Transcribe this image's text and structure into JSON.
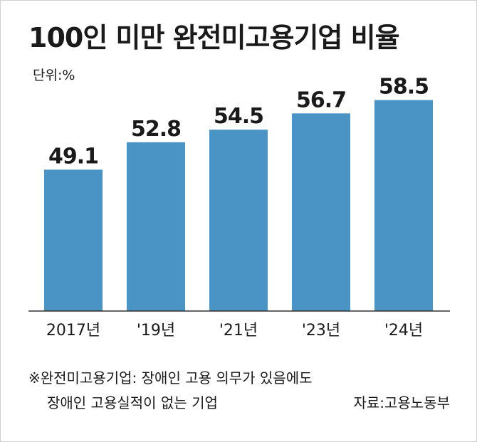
{
  "title": "100인 미만 완전미고용기업 비율",
  "unit_label": "단위:%",
  "chart_data": {
    "type": "bar",
    "categories": [
      "2017년",
      "'19년",
      "'21년",
      "'23년",
      "'24년"
    ],
    "values": [
      49.1,
      52.8,
      54.5,
      56.7,
      58.5
    ],
    "value_labels": [
      "49.1",
      "52.8",
      "54.5",
      "56.7",
      "58.5"
    ],
    "title": "100인 미만 완전미고용기업 비율",
    "ylim": [
      30,
      60
    ],
    "bar_color": "#4a93c5",
    "grid": false,
    "legend": "none"
  },
  "footnote": {
    "line1": "※완전미고용기업: 장애인 고용 의무가 있음에도",
    "line2": "장애인 고용실적이 없는 기업"
  },
  "source": "자료:고용노동부"
}
